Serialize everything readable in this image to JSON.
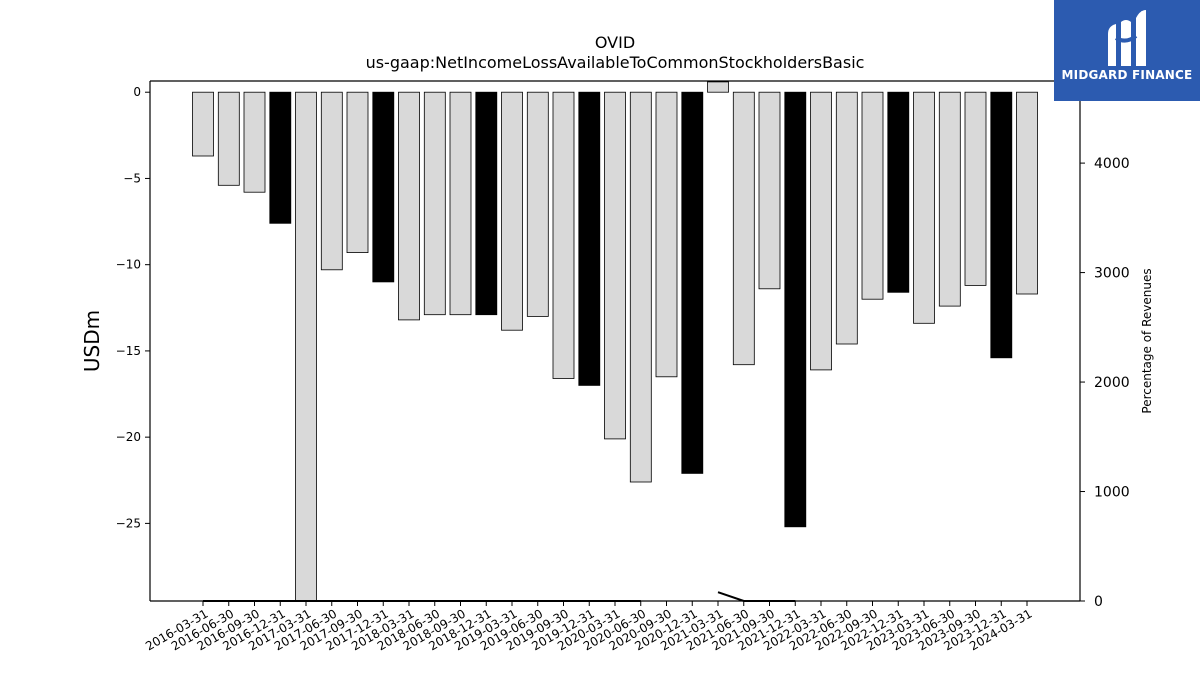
{
  "chart_data": {
    "type": "bar",
    "title": "OVID",
    "subtitle": "us-gaap:NetIncomeLossAvailableToCommonStockholdersBasic",
    "ylabel": "USDm",
    "y2label": "Percentage of Revenues",
    "ylim": [
      -29.5,
      0.65
    ],
    "y2lim": [
      0,
      4750
    ],
    "yticks": [
      0,
      -5,
      -10,
      -15,
      -20,
      -25
    ],
    "y2ticks": [
      0,
      1000,
      2000,
      3000,
      4000
    ],
    "grid": false,
    "categories": [
      "2016-03-31",
      "2016-06-30",
      "2016-09-30",
      "2016-12-31",
      "2017-03-31",
      "2017-06-30",
      "2017-09-30",
      "2017-12-31",
      "2018-03-31",
      "2018-06-30",
      "2018-09-30",
      "2018-12-31",
      "2019-03-31",
      "2019-06-30",
      "2019-09-30",
      "2019-12-31",
      "2020-03-31",
      "2020-06-30",
      "2020-09-30",
      "2020-12-31",
      "2021-03-31",
      "2021-06-30",
      "2021-09-30",
      "2021-12-31",
      "2022-03-31",
      "2022-06-30",
      "2022-09-30",
      "2022-12-31",
      "2023-03-31",
      "2023-06-30",
      "2023-09-30",
      "2023-12-31",
      "2024-03-31"
    ],
    "values": [
      -3.7,
      -5.4,
      -5.8,
      -7.6,
      -29.5,
      -10.3,
      -9.3,
      -11.0,
      -13.2,
      -12.9,
      -12.9,
      -12.9,
      -13.8,
      -13.0,
      -16.6,
      -17.0,
      -20.1,
      -22.6,
      -16.5,
      -22.1,
      0.6,
      -15.8,
      -11.4,
      -25.2,
      -16.1,
      -14.6,
      -12.0,
      -11.6,
      -13.4,
      -12.4,
      -11.2,
      -15.4,
      -11.7
    ],
    "highlight": [
      false,
      false,
      false,
      true,
      false,
      false,
      false,
      true,
      false,
      false,
      false,
      true,
      false,
      false,
      false,
      true,
      false,
      false,
      false,
      true,
      false,
      false,
      false,
      true,
      false,
      false,
      false,
      true,
      false,
      false,
      false,
      true,
      false
    ],
    "colors": {
      "bar": "#d9d9d9",
      "bar_highlight": "#000000",
      "edge": "#000000",
      "line": "#000000"
    },
    "line_series": {
      "name": "Percentage of Revenues",
      "axis": "right",
      "segments": [
        {
          "start": 0,
          "values": [
            0,
            0,
            0,
            0,
            0,
            0,
            0,
            0,
            0,
            0,
            0,
            0,
            0,
            0,
            0,
            0,
            0,
            0
          ]
        },
        {
          "start": 20,
          "values": [
            80,
            0,
            0,
            0
          ]
        }
      ]
    }
  },
  "brand": {
    "name": "MIDGARD FINANCE",
    "color": "#2c5bb0"
  }
}
